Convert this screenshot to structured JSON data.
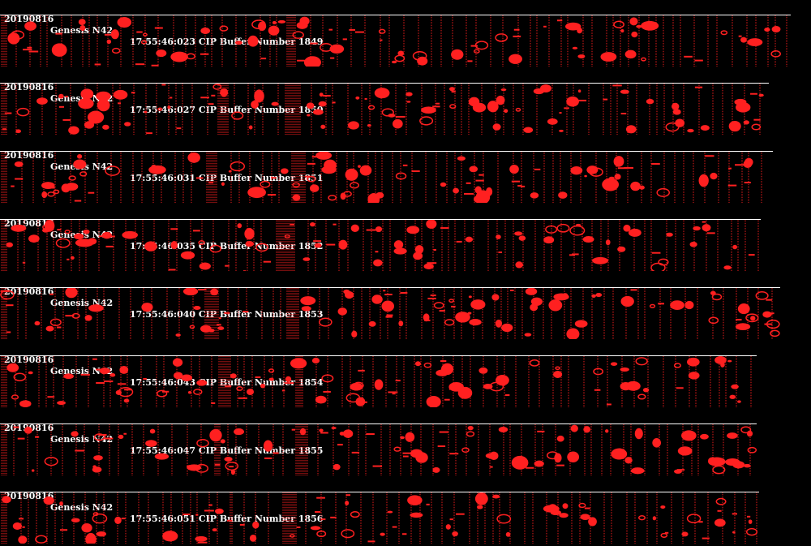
{
  "colors": {
    "background": "#000000",
    "header_text": "#ffffff",
    "particle": "#ff2020"
  },
  "panels": [
    {
      "date": "20190816",
      "probe": "Genesis N42",
      "time_label": "17:55:46:023 CIP Buffer Number 1849"
    },
    {
      "date": "20190816",
      "probe": "Genesis N42",
      "time_label": "17:55:46:027 CIP Buffer Number 1850"
    },
    {
      "date": "20190816",
      "probe": "Genesis N42",
      "time_label": "17:55:46:031 CIP Buffer Number 1851"
    },
    {
      "date": "20190816",
      "probe": "Genesis N42",
      "time_label": "17:55:46:035 CIP Buffer Number 1852"
    },
    {
      "date": "20190816",
      "probe": "Genesis N42",
      "time_label": "17:55:46:040 CIP Buffer Number 1853"
    },
    {
      "date": "20190816",
      "probe": "Genesis N42",
      "time_label": "17:55:46:043 CIP Buffer Number 1854"
    },
    {
      "date": "20190816",
      "probe": "Genesis N42",
      "time_label": "17:55:46:047 CIP Buffer Number 1855"
    },
    {
      "date": "20190816",
      "probe": "Genesis N42",
      "time_label": "17:55:46:051 CIP Buffer Number 1856"
    }
  ]
}
